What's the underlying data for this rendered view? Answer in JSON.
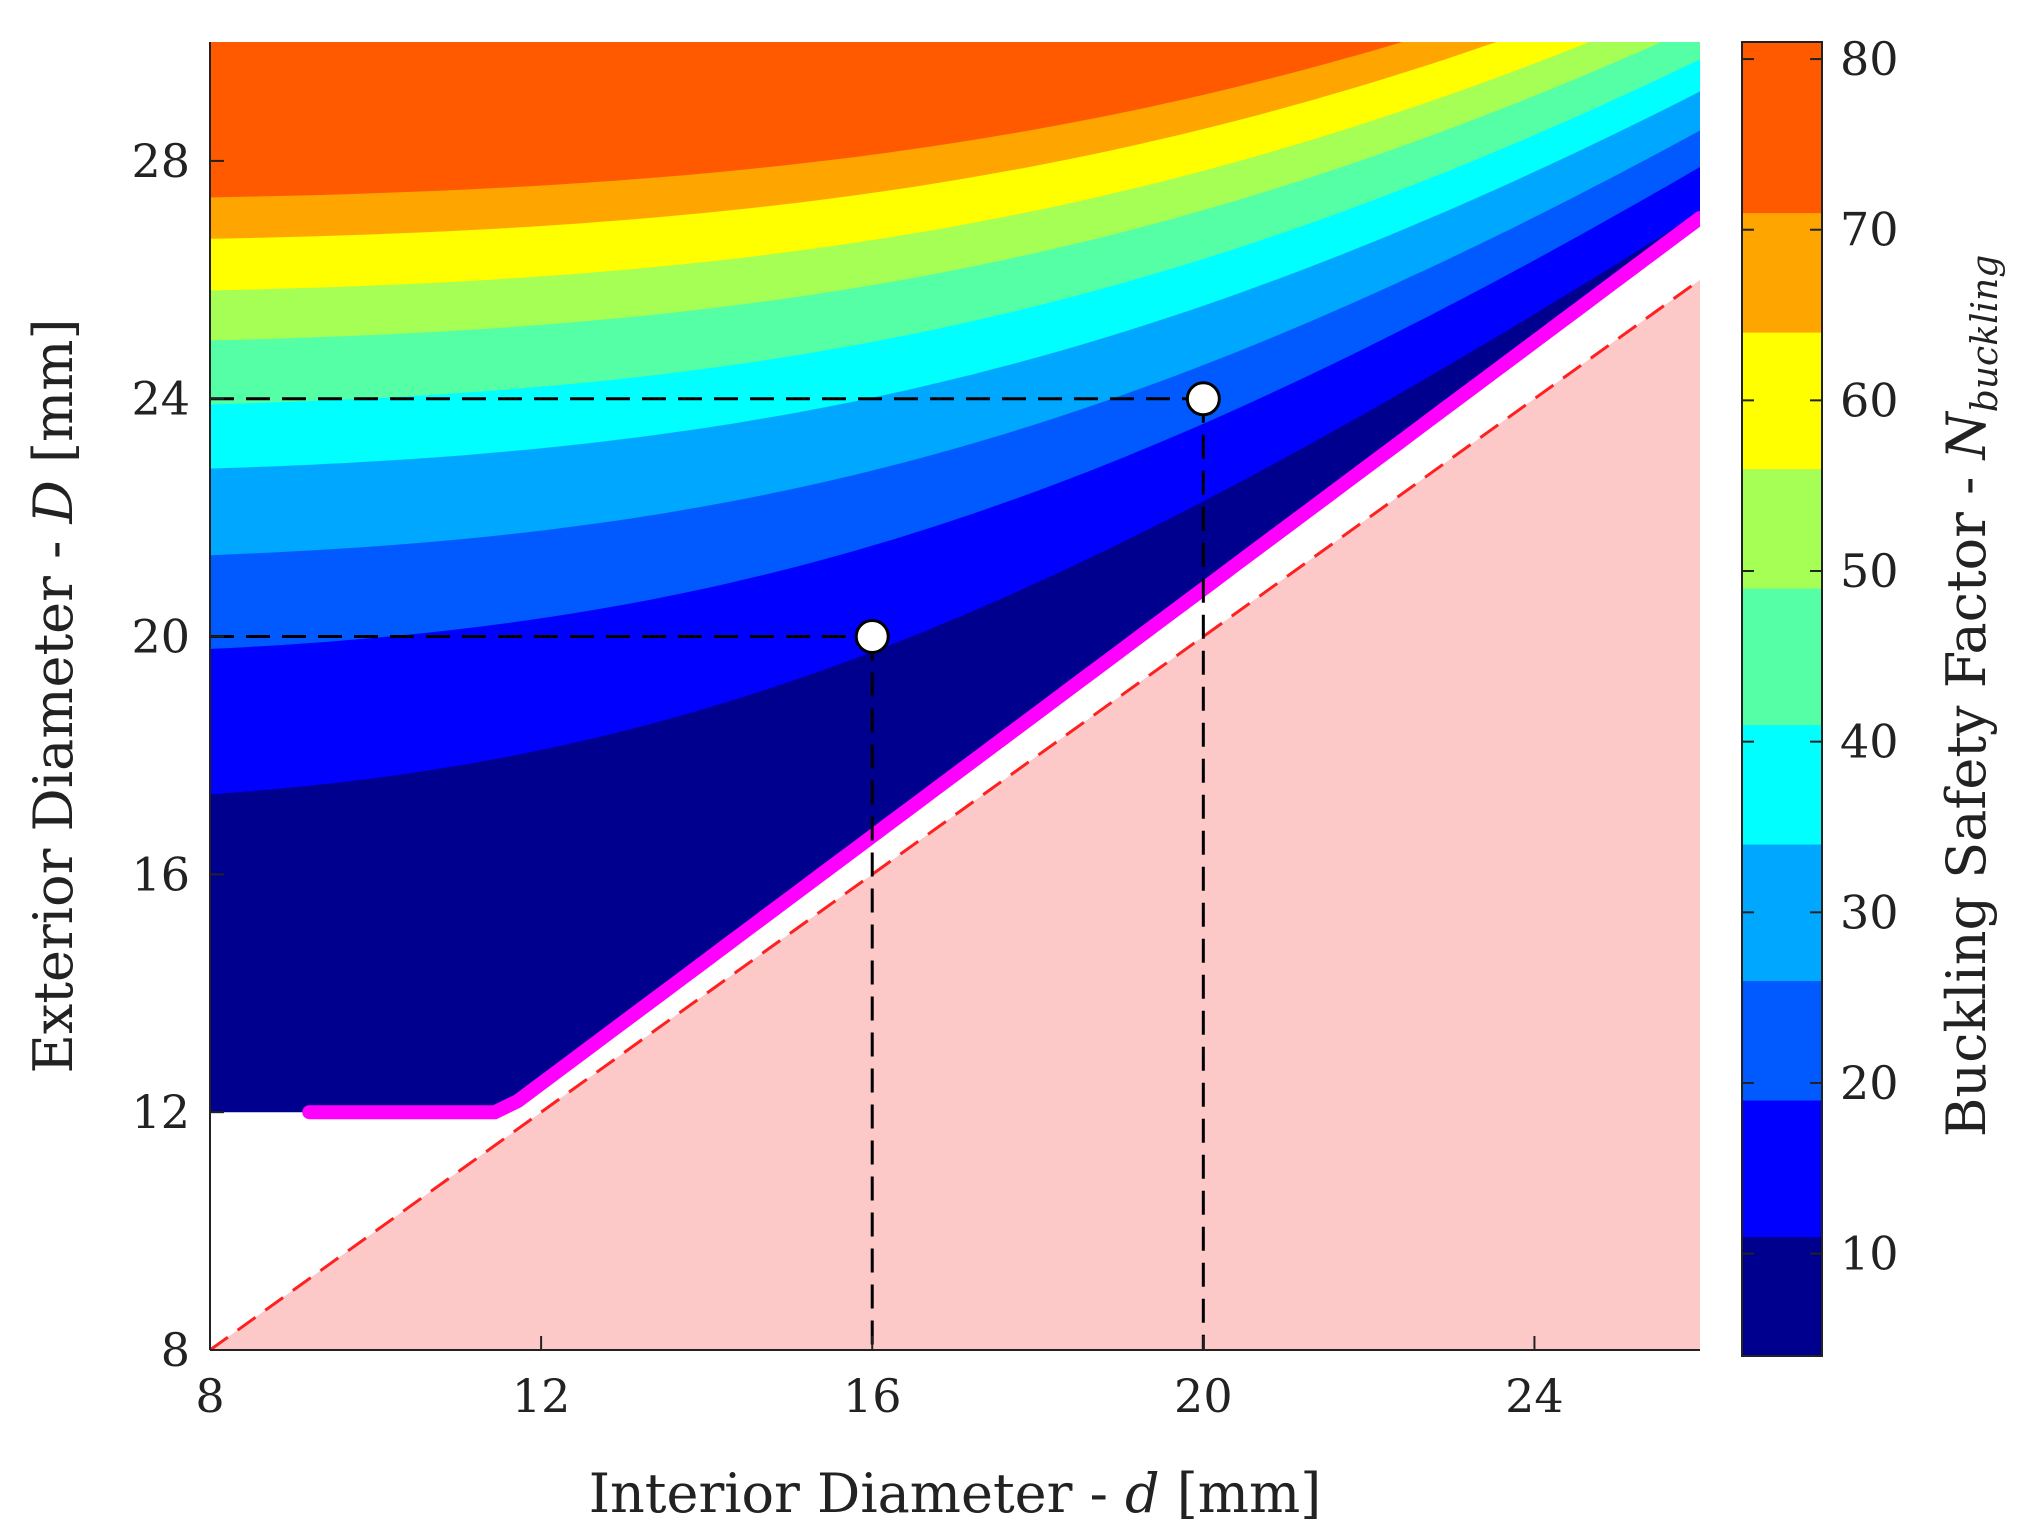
{
  "chart_data": {
    "type": "contour",
    "title": "",
    "xlabel": {
      "prefix": "Interior Diameter - ",
      "var": "d",
      "suffix": " [mm]"
    },
    "ylabel": {
      "prefix": "Exterior Diameter - ",
      "var": "D",
      "suffix": " [mm]"
    },
    "xlim": [
      8,
      26
    ],
    "ylim": [
      8,
      30
    ],
    "xticks": [
      "8",
      "12",
      "16",
      "20",
      "24"
    ],
    "yticks": [
      "8",
      "12",
      "16",
      "20",
      "24",
      "28"
    ],
    "colorbar": {
      "label_prefix": "Buckling Safety Factor - ",
      "label_var": "N",
      "label_sub": "buckling",
      "range": [
        4,
        81
      ],
      "ticks": [
        "10",
        "20",
        "30",
        "40",
        "50",
        "60",
        "70",
        "80"
      ],
      "levels": [
        4,
        11,
        19,
        26,
        34,
        41,
        49,
        56,
        64,
        71,
        81
      ],
      "colors": [
        "#00008f",
        "#0000ff",
        "#005aff",
        "#00a7ff",
        "#00ffff",
        "#55ffa5",
        "#a6ff55",
        "#ffff00",
        "#ffa500",
        "#ff5a00"
      ]
    },
    "contour_model": {
      "k": 0.000127,
      "bands_anchor_ratio": 1.04,
      "min_D": 12
    },
    "infeasible_region": {
      "color": "#fcc8c8",
      "boundary": "D = d",
      "boundary_color": "#ff2020"
    },
    "limit_curve": {
      "color": "#ff00ff",
      "d_start": 9.2,
      "d_end": 26,
      "ratio": 1.04
    },
    "design_points": [
      {
        "d": 16,
        "D": 20
      },
      {
        "d": 20,
        "D": 24
      }
    ],
    "colors": {
      "point_fill": "#ffffff",
      "guide": "#000000",
      "gap": "#ffffff"
    }
  }
}
